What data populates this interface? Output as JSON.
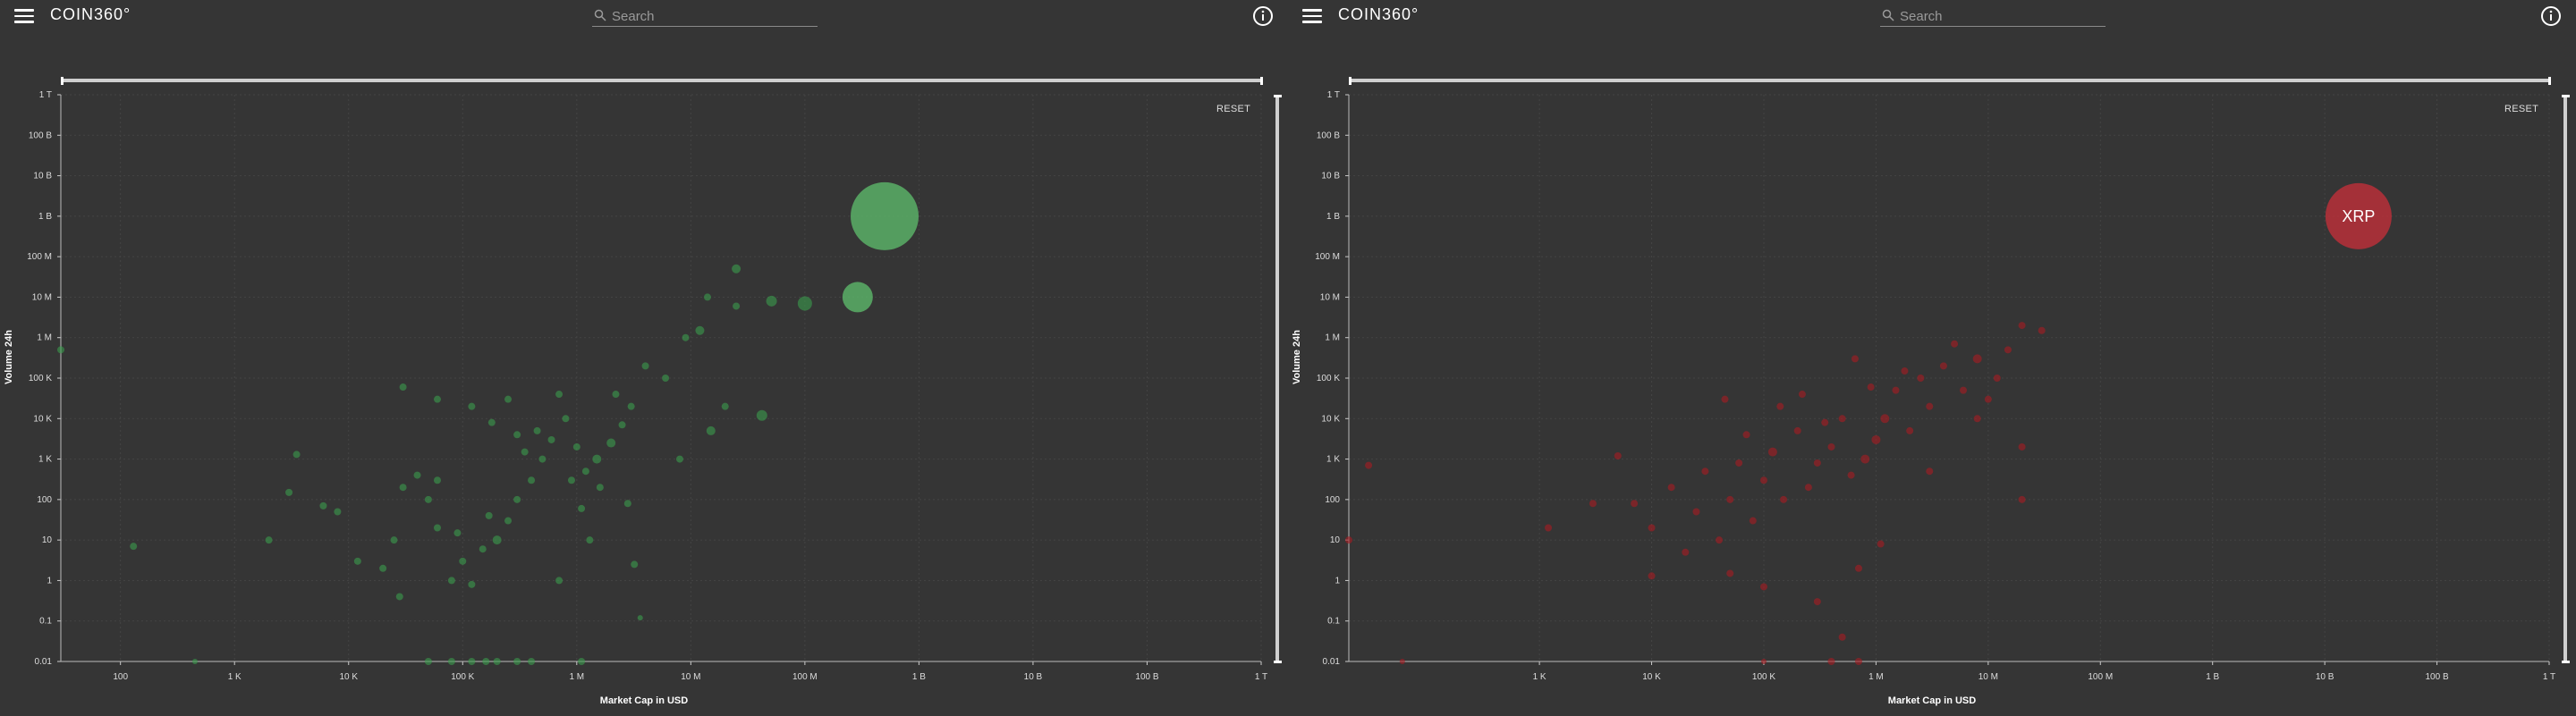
{
  "panels": [
    {
      "id": "gainers",
      "header": {
        "logo": "COIN360°",
        "search_placeholder": "Search"
      },
      "reset_label": "RESET",
      "colors": {
        "bubble": "#3a9d4c",
        "bubble_light": "#5cb86a"
      },
      "chart_data": {
        "type": "scatter",
        "title": "",
        "xlabel": "Market Cap in USD",
        "ylabel": "Volume 24h",
        "x_scale": "log",
        "y_scale": "log",
        "xlim": [
          30,
          1000000000000
        ],
        "ylim": [
          0.01,
          1000000000000
        ],
        "x_ticks": [
          "100",
          "1 K",
          "10 K",
          "100 K",
          "1 M",
          "10 M",
          "100 M",
          "1 B",
          "10 B",
          "100 B",
          "1 T"
        ],
        "y_ticks": [
          "0.01",
          "0.1",
          "1",
          "10",
          "100",
          "1 K",
          "10 K",
          "100 K",
          "1 M",
          "10 M",
          "100 M",
          "1 B",
          "10 B",
          "100 B",
          "1 T"
        ],
        "grid": true,
        "points": [
          {
            "x": 500000000,
            "y": 1000000000,
            "r": 38,
            "label": ""
          },
          {
            "x": 290000000,
            "y": 10000000,
            "r": 17
          },
          {
            "x": 100000000,
            "y": 7000000,
            "r": 8
          },
          {
            "x": 51000000,
            "y": 8000000,
            "r": 6
          },
          {
            "x": 25000000,
            "y": 50000000,
            "r": 5
          },
          {
            "x": 14000000,
            "y": 10000000,
            "r": 4
          },
          {
            "x": 12000000,
            "y": 1500000,
            "r": 5
          },
          {
            "x": 9000000,
            "y": 1000000,
            "r": 4
          },
          {
            "x": 25000000,
            "y": 6000000,
            "r": 4
          },
          {
            "x": 20000000,
            "y": 20000,
            "r": 4
          },
          {
            "x": 42000000,
            "y": 12000,
            "r": 6
          },
          {
            "x": 15000000,
            "y": 5000,
            "r": 5
          },
          {
            "x": 8000000,
            "y": 1000,
            "r": 4
          },
          {
            "x": 6000000,
            "y": 100000,
            "r": 4
          },
          {
            "x": 4000000,
            "y": 200000,
            "r": 4
          },
          {
            "x": 3000000,
            "y": 20000,
            "r": 4
          },
          {
            "x": 2500000,
            "y": 7000,
            "r": 4
          },
          {
            "x": 2000000,
            "y": 2500,
            "r": 5
          },
          {
            "x": 1500000,
            "y": 1000,
            "r": 5
          },
          {
            "x": 1200000,
            "y": 500,
            "r": 4
          },
          {
            "x": 1000000,
            "y": 2000,
            "r": 4
          },
          {
            "x": 800000,
            "y": 10000,
            "r": 4
          },
          {
            "x": 600000,
            "y": 3000,
            "r": 4
          },
          {
            "x": 500000,
            "y": 1000,
            "r": 4
          },
          {
            "x": 400000,
            "y": 300,
            "r": 4
          },
          {
            "x": 300000,
            "y": 100,
            "r": 4
          },
          {
            "x": 250000,
            "y": 30,
            "r": 4
          },
          {
            "x": 200000,
            "y": 10,
            "r": 5
          },
          {
            "x": 150000,
            "y": 6,
            "r": 4
          },
          {
            "x": 100000,
            "y": 3,
            "r": 4
          },
          {
            "x": 80000,
            "y": 1,
            "r": 4
          },
          {
            "x": 60000,
            "y": 20,
            "r": 4
          },
          {
            "x": 50000,
            "y": 100,
            "r": 4
          },
          {
            "x": 40000,
            "y": 400,
            "r": 4
          },
          {
            "x": 30000,
            "y": 200,
            "r": 4
          },
          {
            "x": 25000,
            "y": 10,
            "r": 4
          },
          {
            "x": 20000,
            "y": 2,
            "r": 4
          },
          {
            "x": 12000,
            "y": 3,
            "r": 4
          },
          {
            "x": 8000,
            "y": 50,
            "r": 4
          },
          {
            "x": 6000,
            "y": 70,
            "r": 4
          },
          {
            "x": 3000,
            "y": 150,
            "r": 4
          },
          {
            "x": 3500,
            "y": 1300,
            "r": 4
          },
          {
            "x": 2000,
            "y": 10,
            "r": 4
          },
          {
            "x": 130,
            "y": 7,
            "r": 4
          },
          {
            "x": 30,
            "y": 500000,
            "r": 4
          },
          {
            "x": 30000,
            "y": 60000,
            "r": 4
          },
          {
            "x": 60000,
            "y": 30000,
            "r": 4
          },
          {
            "x": 120000,
            "y": 20000,
            "r": 4
          },
          {
            "x": 180000,
            "y": 8000,
            "r": 4
          },
          {
            "x": 250000,
            "y": 30000,
            "r": 4
          },
          {
            "x": 300000,
            "y": 4000,
            "r": 4
          },
          {
            "x": 350000,
            "y": 1500,
            "r": 4
          },
          {
            "x": 450000,
            "y": 5000,
            "r": 4
          },
          {
            "x": 700000,
            "y": 40000,
            "r": 4
          },
          {
            "x": 900000,
            "y": 300,
            "r": 4
          },
          {
            "x": 1100000,
            "y": 60,
            "r": 4
          },
          {
            "x": 1300000,
            "y": 10,
            "r": 4
          },
          {
            "x": 1600000,
            "y": 200,
            "r": 4
          },
          {
            "x": 2200000,
            "y": 40000,
            "r": 4
          },
          {
            "x": 2800000,
            "y": 80,
            "r": 4
          },
          {
            "x": 3200000,
            "y": 2.5,
            "r": 4
          },
          {
            "x": 3600000,
            "y": 0.12,
            "r": 3
          },
          {
            "x": 700000,
            "y": 1,
            "r": 4
          },
          {
            "x": 120000,
            "y": 0.8,
            "r": 4
          },
          {
            "x": 28000,
            "y": 0.4,
            "r": 4
          },
          {
            "x": 170000,
            "y": 40,
            "r": 4
          },
          {
            "x": 90000,
            "y": 15,
            "r": 4
          },
          {
            "x": 60000,
            "y": 300,
            "r": 4
          },
          {
            "x": 50000,
            "y": 0.01,
            "r": 4
          },
          {
            "x": 80000,
            "y": 0.01,
            "r": 4
          },
          {
            "x": 120000,
            "y": 0.01,
            "r": 4
          },
          {
            "x": 160000,
            "y": 0.01,
            "r": 4
          },
          {
            "x": 200000,
            "y": 0.01,
            "r": 4
          },
          {
            "x": 300000,
            "y": 0.01,
            "r": 4
          },
          {
            "x": 400000,
            "y": 0.01,
            "r": 4
          },
          {
            "x": 1100000,
            "y": 0.01,
            "r": 4
          },
          {
            "x": 450,
            "y": 0.01,
            "r": 3
          }
        ]
      }
    },
    {
      "id": "losers",
      "header": {
        "logo": "COIN360°",
        "search_placeholder": "Search"
      },
      "reset_label": "RESET",
      "colors": {
        "bubble": "#a81a22",
        "bubble_light": "#c0303a"
      },
      "chart_data": {
        "type": "scatter",
        "title": "",
        "xlabel": "Market Cap in USD",
        "ylabel": "Volume 24h",
        "x_scale": "log",
        "y_scale": "log",
        "xlim": [
          20,
          1000000000000
        ],
        "ylim": [
          0.01,
          1000000000000
        ],
        "x_ticks": [
          "1 K",
          "10 K",
          "100 K",
          "1 M",
          "10 M",
          "100 M",
          "1 B",
          "10 B",
          "100 B",
          "1 T"
        ],
        "y_ticks": [
          "0.01",
          "0.1",
          "1",
          "10",
          "100",
          "1 K",
          "10 K",
          "100 K",
          "1 M",
          "10 M",
          "100 M",
          "1 B",
          "10 B",
          "100 B",
          "1 T"
        ],
        "grid": true,
        "points": [
          {
            "x": 20000000000,
            "y": 1000000000,
            "r": 37,
            "label": "XRP"
          },
          {
            "x": 30000000,
            "y": 1500000,
            "r": 4
          },
          {
            "x": 20000000,
            "y": 2000000,
            "r": 4
          },
          {
            "x": 15000000,
            "y": 500000,
            "r": 4
          },
          {
            "x": 12000000,
            "y": 100000,
            "r": 4
          },
          {
            "x": 10000000,
            "y": 30000,
            "r": 4
          },
          {
            "x": 8000000,
            "y": 300000,
            "r": 5
          },
          {
            "x": 6000000,
            "y": 50000,
            "r": 4
          },
          {
            "x": 5000000,
            "y": 700000,
            "r": 4
          },
          {
            "x": 4000000,
            "y": 200000,
            "r": 4
          },
          {
            "x": 3000000,
            "y": 20000,
            "r": 4
          },
          {
            "x": 2500000,
            "y": 100000,
            "r": 4
          },
          {
            "x": 2000000,
            "y": 5000,
            "r": 4
          },
          {
            "x": 1500000,
            "y": 50000,
            "r": 4
          },
          {
            "x": 1200000,
            "y": 10000,
            "r": 5
          },
          {
            "x": 1000000,
            "y": 3000,
            "r": 5
          },
          {
            "x": 800000,
            "y": 1000,
            "r": 5
          },
          {
            "x": 600000,
            "y": 400,
            "r": 4
          },
          {
            "x": 500000,
            "y": 10000,
            "r": 4
          },
          {
            "x": 400000,
            "y": 2000,
            "r": 4
          },
          {
            "x": 300000,
            "y": 800,
            "r": 4
          },
          {
            "x": 250000,
            "y": 200,
            "r": 4
          },
          {
            "x": 200000,
            "y": 5000,
            "r": 4
          },
          {
            "x": 150000,
            "y": 100,
            "r": 4
          },
          {
            "x": 120000,
            "y": 1500,
            "r": 5
          },
          {
            "x": 100000,
            "y": 300,
            "r": 4
          },
          {
            "x": 80000,
            "y": 30,
            "r": 4
          },
          {
            "x": 60000,
            "y": 800,
            "r": 4
          },
          {
            "x": 50000,
            "y": 100,
            "r": 4
          },
          {
            "x": 40000,
            "y": 10,
            "r": 4
          },
          {
            "x": 30000,
            "y": 500,
            "r": 4
          },
          {
            "x": 25000,
            "y": 50,
            "r": 4
          },
          {
            "x": 20000,
            "y": 5,
            "r": 4
          },
          {
            "x": 15000,
            "y": 200,
            "r": 4
          },
          {
            "x": 10000,
            "y": 20,
            "r": 4
          },
          {
            "x": 7000,
            "y": 80,
            "r": 4
          },
          {
            "x": 5000,
            "y": 1200,
            "r": 4
          },
          {
            "x": 3000,
            "y": 80,
            "r": 4
          },
          {
            "x": 1200,
            "y": 20,
            "r": 4
          },
          {
            "x": 30,
            "y": 700,
            "r": 4
          },
          {
            "x": 20,
            "y": 10,
            "r": 4
          },
          {
            "x": 100000,
            "y": 0.7,
            "r": 4
          },
          {
            "x": 300000,
            "y": 0.3,
            "r": 4
          },
          {
            "x": 500000,
            "y": 0.04,
            "r": 4
          },
          {
            "x": 700000,
            "y": 0.01,
            "r": 4
          },
          {
            "x": 400000,
            "y": 0.01,
            "r": 4
          },
          {
            "x": 100000,
            "y": 0.01,
            "r": 3
          },
          {
            "x": 60,
            "y": 0.01,
            "r": 3
          },
          {
            "x": 10000,
            "y": 1.3,
            "r": 4
          },
          {
            "x": 50000,
            "y": 1.5,
            "r": 4
          },
          {
            "x": 1100000,
            "y": 8,
            "r": 4
          },
          {
            "x": 700000,
            "y": 2,
            "r": 4
          },
          {
            "x": 20000000,
            "y": 2000,
            "r": 4
          },
          {
            "x": 8000000,
            "y": 10000,
            "r": 4
          },
          {
            "x": 3000000,
            "y": 500,
            "r": 4
          },
          {
            "x": 20000000,
            "y": 100,
            "r": 4
          },
          {
            "x": 1800000,
            "y": 150000,
            "r": 4
          },
          {
            "x": 900000,
            "y": 60000,
            "r": 4
          },
          {
            "x": 650000,
            "y": 300000,
            "r": 4
          },
          {
            "x": 350000,
            "y": 8000,
            "r": 4
          },
          {
            "x": 220000,
            "y": 40000,
            "r": 4
          },
          {
            "x": 140000,
            "y": 20000,
            "r": 4
          },
          {
            "x": 70000,
            "y": 4000,
            "r": 4
          },
          {
            "x": 45000,
            "y": 30000,
            "r": 4
          }
        ]
      }
    }
  ]
}
